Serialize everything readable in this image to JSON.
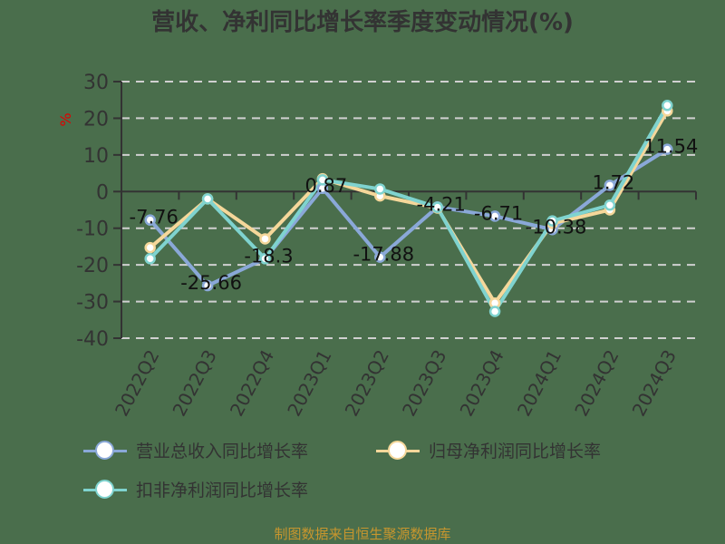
{
  "title": "营收、净利同比增长率季度变动情况(%)",
  "source": "制图数据来自恒生聚源数据库",
  "y_unit": "%",
  "chart_data": {
    "type": "line",
    "title": "营收、净利同比增长率季度变动情况(%)",
    "xlabel": "",
    "ylabel": "%",
    "ylim": [
      -40,
      30
    ],
    "yticks": [
      30,
      20,
      10,
      0,
      -10,
      -20,
      -30,
      -40
    ],
    "grid": "horizontal dashed",
    "legend_position": "bottom",
    "categories": [
      "2022Q2",
      "2022Q3",
      "2022Q4",
      "2023Q1",
      "2023Q2",
      "2023Q3",
      "2023Q4",
      "2024Q1",
      "2024Q2",
      "2024Q3"
    ],
    "series": [
      {
        "name": "营业总收入同比增长率",
        "color": "#8aa8d8",
        "values": [
          -7.76,
          -25.66,
          -18.3,
          0.87,
          -17.88,
          -4.21,
          -6.71,
          -10.38,
          1.72,
          11.54
        ],
        "labels": [
          "-7.76",
          "-25.66",
          "-18.3",
          "0.87",
          "-17.88",
          "-4.21",
          "-6.71",
          "-10.38",
          "1.72",
          "11.54"
        ]
      },
      {
        "name": "归母净利润同比增长率",
        "color": "#f5d79a",
        "values": [
          -15.3,
          -2.0,
          -12.9,
          3.5,
          -1.2,
          -4.5,
          -30.4,
          -8.7,
          -5.0,
          22.0
        ]
      },
      {
        "name": "扣非净利润同比增长率",
        "color": "#7fd3cf",
        "values": [
          -18.3,
          -2.0,
          -18.3,
          3.2,
          0.7,
          -4.3,
          -32.7,
          -8.0,
          -3.7,
          23.5
        ]
      }
    ]
  }
}
